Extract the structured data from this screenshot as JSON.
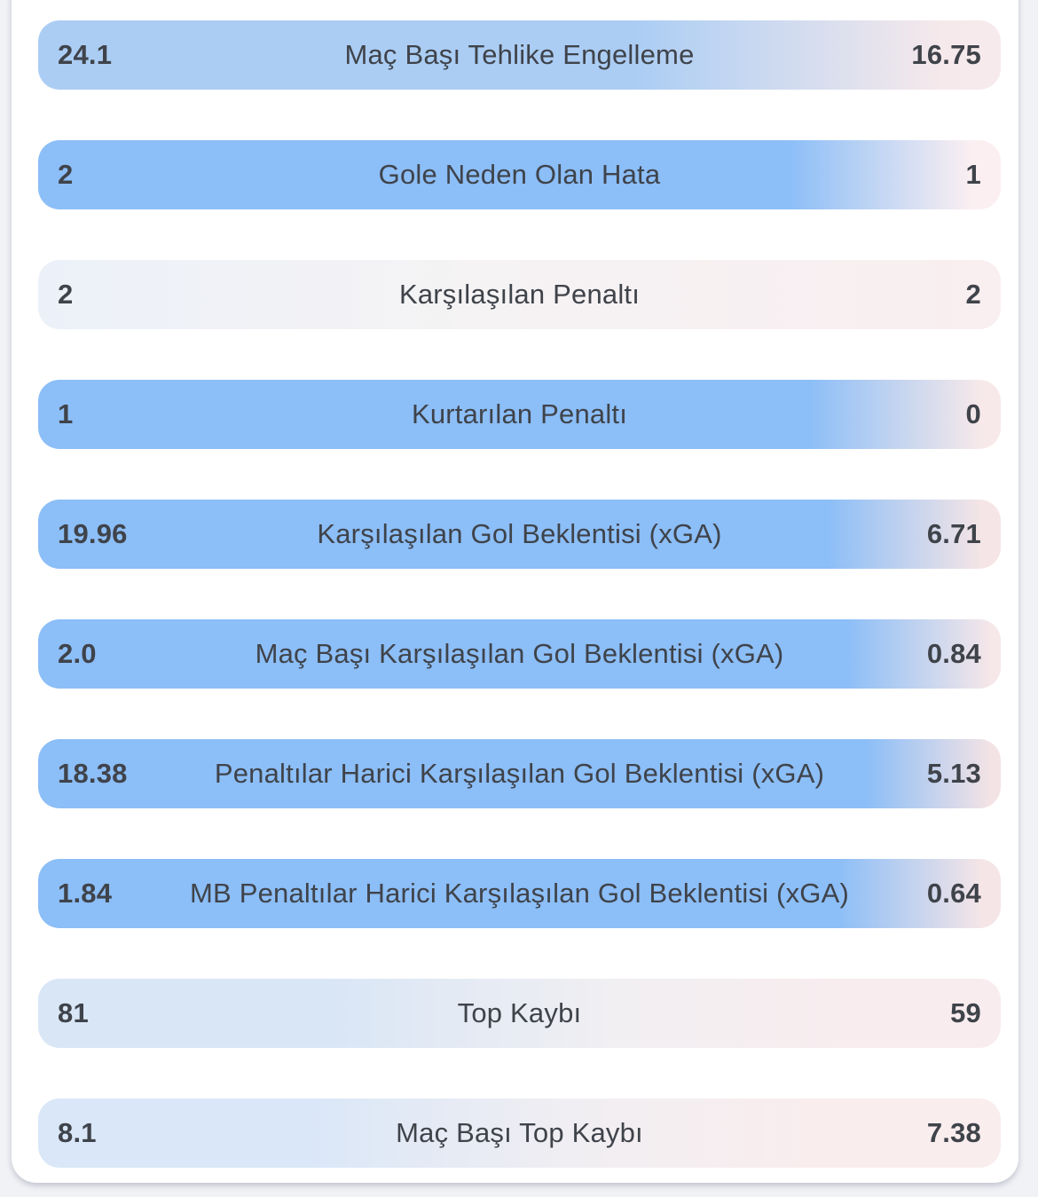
{
  "colors": {
    "page_background": "#f1f2f6",
    "card_background": "#ffffff",
    "text": "#3f434a",
    "home_blue_strong": "#8cbef7",
    "home_blue_medium": "#abcdf4",
    "home_blue_soft": "#d9e6f6",
    "away_pink_soft": "#f6e8ea"
  },
  "rows": [
    {
      "left": "24.1",
      "label": "Maç Başı Tehlike Engelleme",
      "right": "16.75",
      "gradient": "linear-gradient(90deg, #abcdf4 0%, #abcdf4 62%, #f6e9eb 94%, #f7eaec 100%)"
    },
    {
      "left": "2",
      "label": "Gole Neden Olan Hata",
      "right": "1",
      "gradient": "linear-gradient(90deg, #8cbef7 0%, #8cbef7 78%, #fbeff1 97%, #fbeff1 100%)"
    },
    {
      "left": "2",
      "label": "Karşılaşılan Penaltı",
      "right": "2",
      "gradient": "linear-gradient(90deg, #ecf1f9 0%, #f5f3f4 45%, #f9eef0 100%)"
    },
    {
      "left": "1",
      "label": "Kurtarılan Penaltı",
      "right": "0",
      "gradient": "linear-gradient(90deg, #8cbef7 0%, #8cbef7 80%, #f7e9e9 98%, #f7e9e9 100%)"
    },
    {
      "left": "19.96",
      "label": "Karşılaşılan Gol Beklentisi (xGA)",
      "right": "6.71",
      "gradient": "linear-gradient(90deg, #8cbef7 0%, #8cbef7 82%, #f5e5e6 98%, #f5e5e6 100%)"
    },
    {
      "left": "2.0",
      "label": "Maç Başı Karşılaşılan Gol Beklentisi (xGA)",
      "right": "0.84",
      "gradient": "linear-gradient(90deg, #8cbef7 0%, #8cbef7 84%, #f6e7e8 99%, #f6e7e8 100%)"
    },
    {
      "left": "18.38",
      "label": "Penaltılar Harici Karşılaşılan Gol Beklentisi (xGA)",
      "right": "5.13",
      "gradient": "linear-gradient(90deg, #8cbef7 0%, #8cbef7 86%, #f4e3e5 99%, #f4e3e5 100%)"
    },
    {
      "left": "1.84",
      "label": "MB Penaltılar Harici Karşılaşılan Gol Beklentisi (xGA)",
      "right": "0.64",
      "gradient": "linear-gradient(90deg, #8cbef7 0%, #8cbef7 83%, #f5e5e7 98%, #f5e5e7 100%)"
    },
    {
      "left": "81",
      "label": "Top Kaybı",
      "right": "59",
      "gradient": "linear-gradient(90deg, #d9e6f6 0%, #d9e6f6 30%, #f1eff2 60%, #f8ecee 85%, #f8ecee 100%)"
    },
    {
      "left": "8.1",
      "label": "Maç Başı Top Kaybı",
      "right": "7.38",
      "gradient": "linear-gradient(90deg, #d9e7f8 0%, #dae7f8 28%, #f0eef2 55%, #f9edee 80%, #f9edee 100%)"
    }
  ]
}
